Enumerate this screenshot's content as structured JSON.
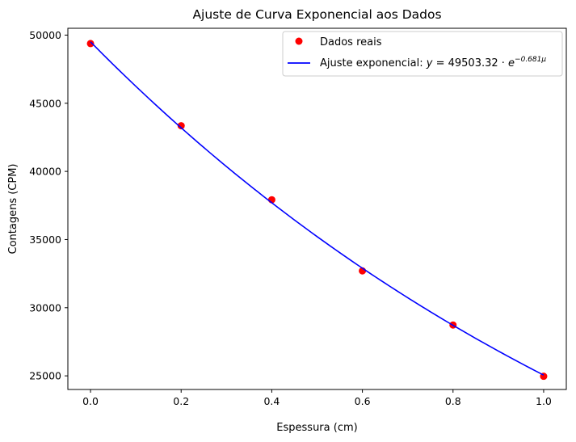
{
  "chart_data": {
    "type": "scatter",
    "title": "Ajuste de Curva Exponencial aos Dados",
    "xlabel": "Espessura (cm)",
    "ylabel": "Contagens (CPM)",
    "xlim": [
      -0.05,
      1.05
    ],
    "ylim": [
      24000,
      50500
    ],
    "xticks": [
      0.0,
      0.2,
      0.4,
      0.6,
      0.8,
      1.0
    ],
    "xtick_labels": [
      "0.0",
      "0.2",
      "0.4",
      "0.6",
      "0.8",
      "1.0"
    ],
    "yticks": [
      25000,
      30000,
      35000,
      40000,
      45000,
      50000
    ],
    "ytick_labels": [
      "25000",
      "30000",
      "35000",
      "40000",
      "45000",
      "50000"
    ],
    "grid": false,
    "legend_position": "top-right",
    "series": [
      {
        "name": "Dados reais",
        "kind": "scatter",
        "color": "#ff0000",
        "x": [
          0.0,
          0.2,
          0.4,
          0.6,
          0.8,
          1.0
        ],
        "y": [
          49380,
          43350,
          37920,
          32700,
          28730,
          24970
        ]
      },
      {
        "name": "Ajuste exponencial: y = 49503.32 · e^(−0.681μ)",
        "kind": "line",
        "color": "#0000ff",
        "model": {
          "a": 49503.32,
          "b": -0.681
        }
      }
    ],
    "legend": {
      "scatter_label": "Dados reais",
      "line_label_prefix": "Ajuste exponencial: ",
      "line_label_eq_y": "y",
      "line_label_eq_mid": " = 49503.32 · ",
      "line_label_eq_e": "e",
      "line_label_eq_exp": "−0.681μ"
    }
  }
}
